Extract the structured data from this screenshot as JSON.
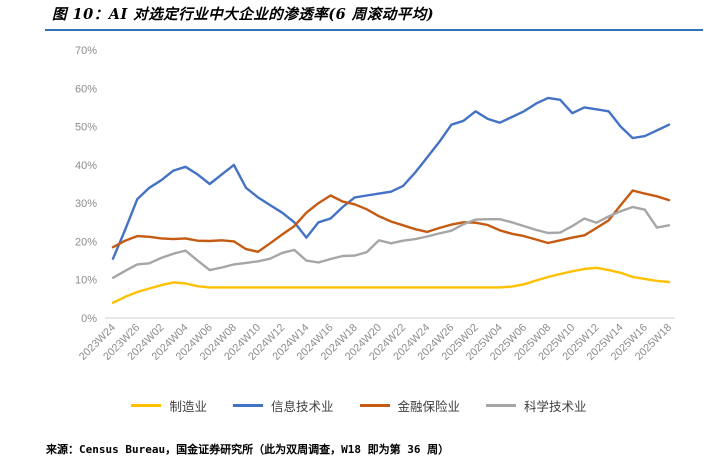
{
  "figure": {
    "title": "图 10：AI 对选定行业中大企业的渗透率(6 周滚动平均)",
    "source": "来源：Census Bureau，国金证券研究所（此为双周调查，W18 即为第 36 周）",
    "accent_rule_color": "#2E75B6"
  },
  "chart_data": {
    "type": "line",
    "title": "AI 对选定行业中大企业的渗透率(6 周滚动平均)",
    "x_count": 47,
    "x_tick_every": 2,
    "x_tick_labels": [
      "2023W24",
      "2023W26",
      "2024W02",
      "2024W04",
      "2024W06",
      "2024W08",
      "2024W10",
      "2024W12",
      "2024W14",
      "2024W16",
      "2024W18",
      "2024W20",
      "2024W22",
      "2024W24",
      "2024W26",
      "2025W02",
      "2025W04",
      "2025W06",
      "2025W08",
      "2025W10",
      "2025W12",
      "2025W14",
      "2025W16",
      "2025W18"
    ],
    "ylim": [
      0,
      70
    ],
    "y_ticks": [
      "0%",
      "10%",
      "20%",
      "30%",
      "40%",
      "50%",
      "60%",
      "70%"
    ],
    "grid": false,
    "legend_position": "bottom",
    "axis_color": "#D9D9D9",
    "tick_label_color": "#8C8C8C",
    "series": [
      {
        "key": "manufacturing",
        "name": "制造业",
        "color": "#FFC000",
        "values": [
          4,
          5.5,
          6.8,
          7.7,
          8.6,
          9.3,
          9,
          8.3,
          8,
          8,
          8,
          8,
          8,
          8,
          8,
          8,
          8,
          8,
          8,
          8,
          8,
          8,
          8,
          8,
          8,
          8,
          8,
          8,
          8,
          8,
          8,
          8,
          8,
          8.2,
          8.8,
          9.8,
          10.7,
          11.5,
          12.2,
          12.8,
          13.1,
          12.5,
          11.8,
          10.7,
          10.2,
          9.7,
          9.4
        ]
      },
      {
        "key": "information-technology",
        "name": "信息技术业",
        "color": "#4472C4",
        "values": [
          15.5,
          23,
          31,
          34,
          36,
          38.5,
          39.5,
          37.5,
          35,
          37.5,
          40,
          34,
          31.5,
          29.5,
          27.5,
          25,
          21,
          25,
          26,
          29,
          31.5,
          32,
          32.5,
          33,
          34.5,
          38,
          42,
          46,
          50.5,
          51.5,
          54,
          52,
          51,
          52.5,
          54,
          56,
          57.5,
          57,
          53.5,
          55,
          54.5,
          54,
          50,
          47,
          47.5,
          49,
          50.5
        ]
      },
      {
        "key": "finance-insurance",
        "name": "金融保险业",
        "color": "#C55A11",
        "values": [
          18.5,
          20.2,
          21.4,
          21.2,
          20.8,
          20.6,
          20.8,
          20.2,
          20.1,
          20.3,
          20,
          18,
          17.3,
          19.5,
          21.8,
          24,
          27.5,
          30,
          32,
          30.4,
          29.7,
          28.4,
          26.6,
          25.2,
          24.2,
          23.2,
          22.5,
          23.5,
          24.4,
          25,
          24.9,
          24.3,
          22.9,
          22,
          21.4,
          20.5,
          19.6,
          20.3,
          21,
          21.6,
          23.5,
          25.5,
          29.5,
          33.3,
          32.5,
          31.8,
          30.8
        ]
      },
      {
        "key": "science-technology",
        "name": "科学技术业",
        "color": "#A6A6A6",
        "values": [
          10.5,
          12.3,
          14,
          14.3,
          15.7,
          16.8,
          17.6,
          15,
          12.5,
          13.2,
          14,
          14.4,
          14.8,
          15.5,
          17,
          17.8,
          15,
          14.5,
          15.4,
          16.2,
          16.3,
          17.2,
          20.3,
          19.5,
          20.2,
          20.6,
          21.3,
          22.1,
          22.8,
          24.5,
          25.7,
          25.8,
          25.8,
          25,
          24,
          23,
          22.2,
          22.3,
          24,
          26,
          24.9,
          26.5,
          27.9,
          29,
          28.3,
          23.6,
          24.2
        ]
      }
    ]
  }
}
